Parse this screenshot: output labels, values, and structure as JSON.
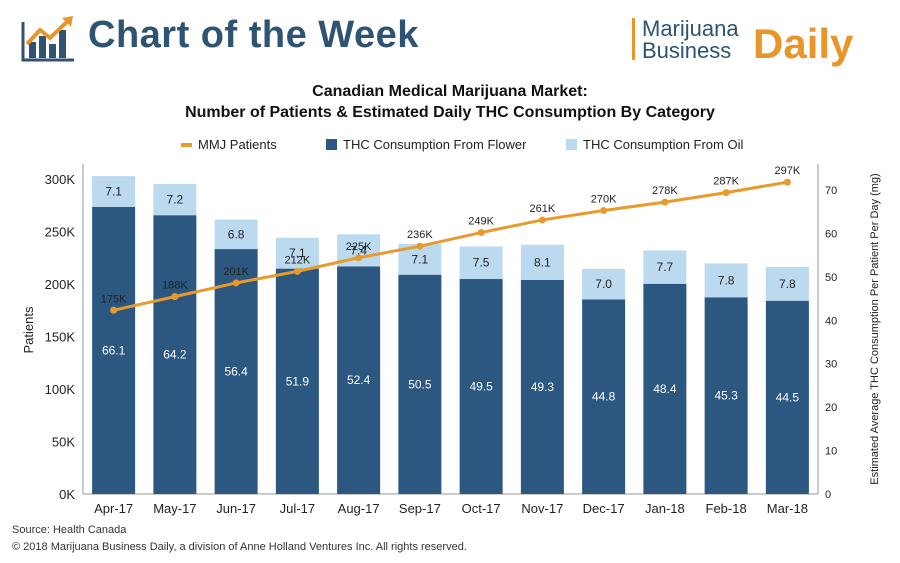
{
  "banner": {
    "title": "Chart of the Week"
  },
  "brand": {
    "line1": "Marijuana",
    "line2": "Business",
    "daily": "Daily"
  },
  "chart_data": {
    "type": "bar",
    "title_line1": "Canadian Medical Marijuana Market:",
    "title_line2": "Number of Patients & Estimated Daily THC Consumption By Category",
    "ylabel_left": "Patients",
    "ylabel_right": "Estimated Average THC Consumption Per Patient Per Day (mg)",
    "left_axis": {
      "min": 0,
      "max": 300000,
      "ticks": [
        0,
        50000,
        100000,
        150000,
        200000,
        250000,
        300000
      ],
      "tick_labels": [
        "0K",
        "50K",
        "100K",
        "150K",
        "200K",
        "250K",
        "300K"
      ]
    },
    "right_axis": {
      "min": 0,
      "max": 70,
      "ticks": [
        0,
        10,
        20,
        30,
        40,
        50,
        60,
        70
      ],
      "tick_labels": [
        "0",
        "10",
        "20",
        "30",
        "40",
        "50",
        "60",
        "70"
      ]
    },
    "categories": [
      "Apr-17",
      "May-17",
      "Jun-17",
      "Jul-17",
      "Aug-17",
      "Sep-17",
      "Oct-17",
      "Nov-17",
      "Dec-17",
      "Jan-18",
      "Feb-18",
      "Mar-18"
    ],
    "series": [
      {
        "name": "THC Consumption From Flower",
        "kind": "stacked-bar",
        "axis": "right",
        "color": "#2b5781",
        "values": [
          66.1,
          64.2,
          56.4,
          51.9,
          52.4,
          50.5,
          49.5,
          49.3,
          44.8,
          48.4,
          45.3,
          44.5
        ],
        "labels": [
          "66.1",
          "64.2",
          "56.4",
          "51.9",
          "52.4",
          "50.5",
          "49.5",
          "49.3",
          "44.8",
          "48.4",
          "45.3",
          "44.5"
        ]
      },
      {
        "name": "THC Consumption From Oil",
        "kind": "stacked-bar",
        "axis": "right",
        "color": "#bcdaef",
        "values": [
          7.1,
          7.2,
          6.8,
          7.1,
          7.4,
          7.1,
          7.5,
          8.1,
          7.0,
          7.7,
          7.8,
          7.8
        ],
        "labels": [
          "7.1",
          "7.2",
          "6.8",
          "7.1",
          "7.4",
          "7.1",
          "7.5",
          "8.1",
          "7.0",
          "7.7",
          "7.8",
          "7.8"
        ]
      },
      {
        "name": "MMJ Patients",
        "kind": "line",
        "axis": "left",
        "color": "#e99a2c",
        "values": [
          175000,
          188000,
          201000,
          212000,
          225000,
          236000,
          249000,
          261000,
          270000,
          278000,
          287000,
          297000
        ],
        "labels": [
          "175K",
          "188K",
          "201K",
          "212K",
          "225K",
          "236K",
          "249K",
          "261K",
          "270K",
          "278K",
          "287K",
          "297K"
        ]
      }
    ],
    "legend_order": [
      "MMJ Patients",
      "THC Consumption From Flower",
      "THC Consumption From Oil"
    ],
    "legend_position": "top",
    "grid": false
  },
  "footer": {
    "source": "Source: Health Canada",
    "copyright": "© 2018 Marijuana Business Daily, a division of Anne Holland Ventures Inc. All rights reserved."
  }
}
